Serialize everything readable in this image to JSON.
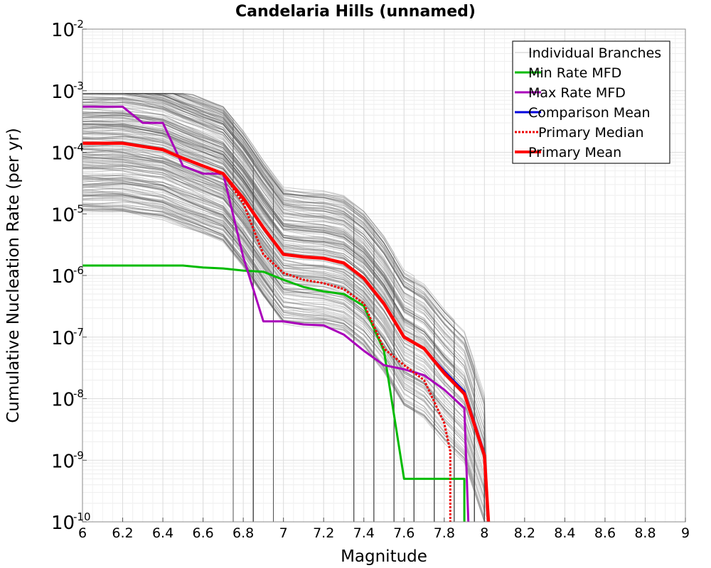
{
  "chart_data": {
    "type": "line",
    "title": "Candelaria Hills (unnamed)",
    "xlabel": "Magnitude",
    "ylabel": "Cumulative Nucleation Rate (per yr)",
    "xlim": [
      6,
      9
    ],
    "ylim": [
      1e-10,
      0.01
    ],
    "y_scale": "log",
    "grid": true,
    "legend_position": "top-right",
    "x_ticks": [
      "6",
      "6.2",
      "6.4",
      "6.6",
      "6.8",
      "7",
      "7.2",
      "7.4",
      "7.6",
      "7.8",
      "8",
      "8.2",
      "8.4",
      "8.6",
      "8.8",
      "9"
    ],
    "y_ticks": [
      {
        "base": "10",
        "exp": "-10",
        "value": 1e-10
      },
      {
        "base": "10",
        "exp": "-9",
        "value": 1e-09
      },
      {
        "base": "10",
        "exp": "-8",
        "value": 1e-08
      },
      {
        "base": "10",
        "exp": "-7",
        "value": 1e-07
      },
      {
        "base": "10",
        "exp": "-6",
        "value": 1e-06
      },
      {
        "base": "10",
        "exp": "-5",
        "value": 1e-05
      },
      {
        "base": "10",
        "exp": "-4",
        "value": 0.0001
      },
      {
        "base": "10",
        "exp": "-3",
        "value": 0.001
      },
      {
        "base": "10",
        "exp": "-2",
        "value": 0.01
      }
    ],
    "legend": [
      {
        "label": "Individual Branches",
        "color": "#c8c8c8",
        "style": "thin"
      },
      {
        "label": "Min Rate MFD",
        "color": "#00bb00",
        "style": "solid"
      },
      {
        "label": "Max Rate MFD",
        "color": "#aa00bb",
        "style": "solid"
      },
      {
        "label": "Comparison Mean",
        "color": "#0000dd",
        "style": "solid"
      },
      {
        "label": "Primary Median",
        "color": "#ee0000",
        "style": "dotted"
      },
      {
        "label": "Primary Mean",
        "color": "#ff0000",
        "style": "thick"
      }
    ],
    "series": [
      {
        "name": "Min Rate MFD",
        "color": "#00bb00",
        "x": [
          6.0,
          6.5,
          6.6,
          6.7,
          6.8,
          6.9,
          7.0,
          7.1,
          7.2,
          7.3,
          7.4,
          7.5,
          7.6,
          7.7,
          7.8,
          7.9,
          7.9
        ],
        "y": [
          1.45e-06,
          1.45e-06,
          1.35e-06,
          1.3e-06,
          1.2e-06,
          1.15e-06,
          8.5e-07,
          6.5e-07,
          5.5e-07,
          5e-07,
          3.2e-07,
          6e-08,
          5e-10,
          5e-10,
          5e-10,
          5e-10,
          1e-10
        ]
      },
      {
        "name": "Max Rate MFD",
        "color": "#aa00bb",
        "x": [
          6.0,
          6.2,
          6.3,
          6.4,
          6.5,
          6.6,
          6.7,
          6.8,
          6.9,
          7.0,
          7.1,
          7.2,
          7.3,
          7.4,
          7.5,
          7.6,
          7.7,
          7.8,
          7.9,
          7.92
        ],
        "y": [
          0.00055,
          0.00055,
          0.0003,
          0.0003,
          6e-05,
          4.5e-05,
          4.5e-05,
          2e-06,
          1.8e-07,
          1.8e-07,
          1.6e-07,
          1.55e-07,
          1.1e-07,
          6e-08,
          3.5e-08,
          3e-08,
          2.4e-08,
          1.4e-08,
          7e-09,
          1e-10
        ]
      },
      {
        "name": "Comparison Mean",
        "color": "#0000dd",
        "x": [
          6.0,
          6.2,
          6.4,
          6.5,
          6.6,
          6.7,
          6.8,
          6.9,
          7.0,
          7.1,
          7.2,
          7.3,
          7.4,
          7.5,
          7.6,
          7.7,
          7.8,
          7.9,
          8.0,
          8.02
        ],
        "y": [
          0.00014,
          0.00014,
          0.00011,
          8e-05,
          6e-05,
          4.5e-05,
          1.8e-05,
          6e-06,
          2.2e-06,
          2e-06,
          1.9e-06,
          1.6e-06,
          9e-07,
          3.5e-07,
          1e-07,
          6.5e-08,
          2.8e-08,
          1.3e-08,
          1.3e-09,
          1e-10
        ]
      },
      {
        "name": "Primary Median",
        "color": "#ee0000",
        "x": [
          6.7,
          6.8,
          6.9,
          7.0,
          7.1,
          7.2,
          7.3,
          7.4,
          7.5,
          7.6,
          7.7,
          7.8,
          7.83,
          7.83
        ],
        "y": [
          4.5e-05,
          1.5e-05,
          2.2e-06,
          1.1e-06,
          8.5e-07,
          7.5e-07,
          6e-07,
          3.5e-07,
          6.5e-08,
          3.5e-08,
          2e-08,
          4e-09,
          1.4e-09,
          1e-10
        ]
      },
      {
        "name": "Primary Mean",
        "color": "#ff0000",
        "x": [
          6.0,
          6.2,
          6.4,
          6.5,
          6.6,
          6.7,
          6.8,
          6.9,
          7.0,
          7.1,
          7.2,
          7.3,
          7.4,
          7.5,
          7.6,
          7.7,
          7.8,
          7.9,
          8.0,
          8.02
        ],
        "y": [
          0.00014,
          0.00014,
          0.00011,
          8e-05,
          6e-05,
          4.5e-05,
          1.8e-05,
          6e-06,
          2.2e-06,
          2e-06,
          1.9e-06,
          1.6e-06,
          9e-07,
          3.5e-07,
          1e-07,
          6.5e-08,
          2.6e-08,
          1.2e-08,
          1.2e-09,
          1e-10
        ]
      }
    ]
  }
}
